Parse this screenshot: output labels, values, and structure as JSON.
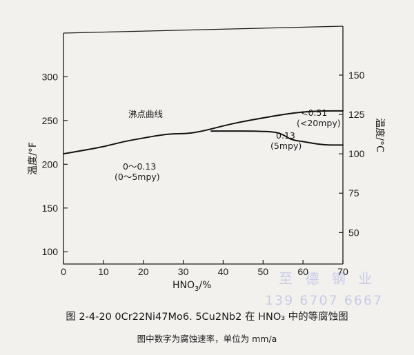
{
  "chart_data": {
    "type": "line",
    "x_label_prefix": "HNO",
    "x_label_subscript": "3",
    "x_label_suffix": "/%",
    "y_left_label": "温度/°F",
    "y_right_label": "温度/°C",
    "xlim": [
      0,
      70
    ],
    "ylim_left_F": [
      86,
      350
    ],
    "ylim_right_C": [
      30,
      176.7
    ],
    "x_ticks": [
      0,
      10,
      20,
      30,
      40,
      50,
      60,
      70
    ],
    "y_left_ticks": [
      100,
      150,
      200,
      250,
      300
    ],
    "y_right_ticks": [
      50,
      75,
      100,
      125,
      150
    ],
    "grid": false,
    "series": [
      {
        "name": "沸点曲线",
        "x": [
          0,
          5,
          10,
          15,
          20,
          25,
          28,
          31,
          35,
          40,
          45,
          50,
          55,
          60,
          65,
          70
        ],
        "y": [
          212,
          216,
          220,
          226,
          230,
          234,
          235,
          235,
          238,
          244,
          249,
          253,
          257,
          260,
          261,
          261
        ]
      },
      {
        "name": "0.13 (5mpy)",
        "x": [
          37,
          42,
          48,
          53,
          55,
          57,
          60,
          65,
          70
        ],
        "y": [
          238,
          238,
          238,
          237,
          234,
          228,
          226,
          222,
          222
        ]
      }
    ],
    "annotations": {
      "boiling_curve": "沸点曲线",
      "zone_high_1": "<0.51",
      "zone_high_2": "(<20mpy)",
      "iso_013_1": "0.13",
      "iso_013_2": "(5mpy)",
      "zone_low_1": "0～0.13",
      "zone_low_2": "(0～5mpy)"
    }
  },
  "caption": "图 2-4-20    0Cr22Ni47Mo6. 5Cu2Nb2 在 HNO₃ 中的等腐蚀图",
  "subcaption": "图中数字为腐蚀速率，单位为 mm/a",
  "watermark": {
    "line1": "至 德 钢 业",
    "line2": "139 6707 6667"
  }
}
